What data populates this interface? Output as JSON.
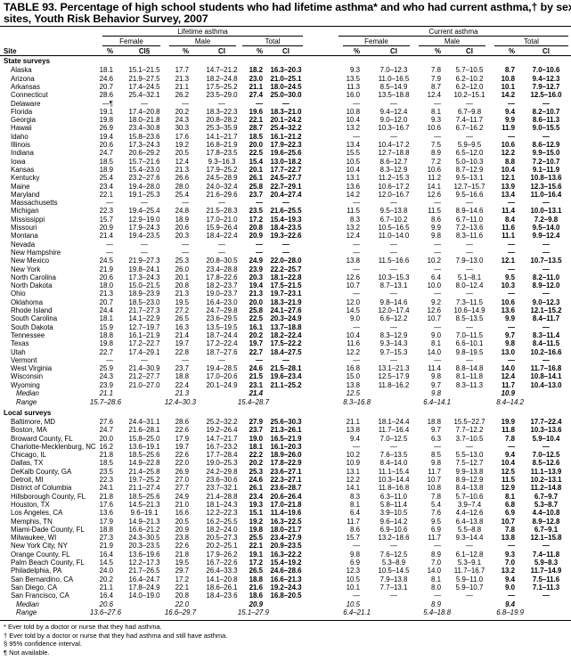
{
  "title": {
    "line1": "TABLE 93. Percentage of high school students who had lifetime asthma* and who had current asthma,† by sex — selected U.S.",
    "line2": "sites, Youth Risk Behavior Survey, 2007"
  },
  "headers": {
    "lifetime": "Lifetime asthma",
    "current": "Current asthma",
    "female": "Female",
    "male": "Male",
    "total": "Total",
    "site": "Site",
    "pct": "%",
    "ci": "CI",
    "ci_first": "CI§"
  },
  "states": {
    "label": "State surveys",
    "rows": [
      [
        "Alaska",
        "18.1",
        "15.1–21.5",
        "17.7",
        "14.7–21.2",
        "18.2",
        "16.3–20.3",
        "9.3",
        "7.0–12.3",
        "7.8",
        "5.7–10.5",
        "8.7",
        "7.0–10.6"
      ],
      [
        "Arizona",
        "24.6",
        "21.9–27.5",
        "21.3",
        "18.2–24.8",
        "23.0",
        "21.0–25.1",
        "13.5",
        "11.0–16.5",
        "7.9",
        "6.2–10.2",
        "10.8",
        "9.4–12.3"
      ],
      [
        "Arkansas",
        "20.7",
        "17.4–24.5",
        "21.1",
        "17.5–25.2",
        "21.1",
        "18.0–24.5",
        "11.3",
        "8.5–14.9",
        "8.7",
        "6.2–12.0",
        "10.1",
        "7.9–12.7"
      ],
      [
        "Connecticut",
        "28.6",
        "25.4–32.1",
        "26.2",
        "23.5–29.0",
        "27.4",
        "25.0–30.0",
        "16.0",
        "13.5–18.8",
        "12.4",
        "10.2–15.1",
        "14.2",
        "12.5–16.0"
      ],
      [
        "Delaware",
        "—¶",
        "—",
        "—",
        "—",
        "—",
        "—",
        "—",
        "—",
        "—",
        "—",
        "—",
        "—"
      ],
      [
        "Florida",
        "19.1",
        "17.4–20.8",
        "20.2",
        "18.3–22.3",
        "19.6",
        "18.3–21.0",
        "10.8",
        "9.4–12.4",
        "8.1",
        "6.7–9.8",
        "9.4",
        "8.2–10.7"
      ],
      [
        "Georgia",
        "19.8",
        "18.0–21.8",
        "24.3",
        "20.8–28.2",
        "22.1",
        "20.1–24.2",
        "10.4",
        "9.0–12.0",
        "9.3",
        "7.4–11.7",
        "9.9",
        "8.6–11.3"
      ],
      [
        "Hawaii",
        "26.9",
        "23.4–30.8",
        "30.3",
        "25.3–35.9",
        "28.7",
        "25.4–32.2",
        "13.2",
        "10.3–16.7",
        "10.6",
        "6.7–16.2",
        "11.9",
        "9.0–15.5"
      ],
      [
        "Idaho",
        "19.4",
        "15.8–23.6",
        "17.6",
        "14.1–21.7",
        "18.5",
        "16.1–21.2",
        "—",
        "—",
        "—",
        "—",
        "—",
        "—"
      ],
      [
        "Illinois",
        "20.6",
        "17.3–24.3",
        "19.2",
        "16.8–21.9",
        "20.0",
        "17.9–22.3",
        "13.4",
        "10.4–17.2",
        "7.5",
        "5.9–9.5",
        "10.6",
        "8.6–12.9"
      ],
      [
        "Indiana",
        "24.7",
        "20.6–29.2",
        "20.5",
        "17.8–23.5",
        "22.5",
        "19.6–25.6",
        "15.5",
        "12.7–18.8",
        "8.9",
        "6.5–12.0",
        "12.2",
        "9.9–15.0"
      ],
      [
        "Iowa",
        "18.5",
        "15.7–21.6",
        "12.4",
        "9.3–16.3",
        "15.4",
        "13.0–18.2",
        "10.5",
        "8.6–12.7",
        "7.2",
        "5.0–10.3",
        "8.8",
        "7.2–10.7"
      ],
      [
        "Kansas",
        "18.9",
        "15.4–23.0",
        "21.3",
        "17.9–25.2",
        "20.1",
        "17.7–22.7",
        "10.4",
        "8.3–12.9",
        "10.6",
        "8.7–12.9",
        "10.4",
        "9.1–11.9"
      ],
      [
        "Kentucky",
        "25.4",
        "23.2–27.6",
        "26.6",
        "24.5–28.9",
        "26.1",
        "24.5–27.7",
        "13.1",
        "11.2–15.3",
        "11.2",
        "9.5–13.1",
        "12.1",
        "10.8–13.6"
      ],
      [
        "Maine",
        "23.4",
        "19.4–28.0",
        "28.0",
        "24.0–32.4",
        "25.8",
        "22.7–29.1",
        "13.6",
        "10.6–17.2",
        "14.1",
        "12.7–15.7",
        "13.9",
        "12.3–15.6"
      ],
      [
        "Maryland",
        "22.1",
        "19.1–25.3",
        "25.4",
        "21.6–29.6",
        "23.7",
        "20.4–27.4",
        "14.2",
        "12.0–16.7",
        "12.6",
        "9.5–16.6",
        "13.4",
        "11.0–16.4"
      ],
      [
        "Massachusetts",
        "—",
        "—",
        "—",
        "—",
        "—",
        "—",
        "—",
        "—",
        "—",
        "—",
        "—",
        "—"
      ],
      [
        "Michigan",
        "22.3",
        "19.4–25.4",
        "24.8",
        "21.5–28.3",
        "23.5",
        "21.6–25.5",
        "11.5",
        "9.5–13.8",
        "11.5",
        "8.9–14.6",
        "11.4",
        "10.0–13.1"
      ],
      [
        "Mississippi",
        "15.7",
        "12.9–19.0",
        "18.9",
        "17.0–21.0",
        "17.2",
        "15.4–19.3",
        "8.3",
        "6.7–10.2",
        "8.6",
        "6.7–11.0",
        "8.4",
        "7.2–9.8"
      ],
      [
        "Missouri",
        "20.9",
        "17.9–24.3",
        "20.6",
        "15.9–26.4",
        "20.8",
        "18.4–23.5",
        "13.2",
        "10.5–16.5",
        "9.9",
        "7.2–13.6",
        "11.6",
        "9.5–14.0"
      ],
      [
        "Montana",
        "21.4",
        "19.4–23.5",
        "20.3",
        "18.4–22.4",
        "20.9",
        "19.3–22.6",
        "12.4",
        "11.0–14.0",
        "9.8",
        "8.3–11.6",
        "11.1",
        "9.9–12.4"
      ],
      [
        "Nevada",
        "—",
        "—",
        "—",
        "—",
        "—",
        "—",
        "—",
        "—",
        "—",
        "—",
        "—",
        "—"
      ],
      [
        "New Hampshire",
        "—",
        "—",
        "—",
        "—",
        "—",
        "—",
        "—",
        "—",
        "—",
        "—",
        "—",
        "—"
      ],
      [
        "New Mexico",
        "24.5",
        "21.9–27.3",
        "25.3",
        "20.8–30.5",
        "24.9",
        "22.0–28.0",
        "13.8",
        "11.5–16.6",
        "10.2",
        "7.9–13.0",
        "12.1",
        "10.7–13.5"
      ],
      [
        "New York",
        "21.9",
        "19.8–24.1",
        "26.0",
        "23.4–28.8",
        "23.9",
        "22.2–25.7",
        "—",
        "—",
        "—",
        "—",
        "—",
        "—"
      ],
      [
        "North Carolina",
        "20.6",
        "17.3–24.3",
        "20.1",
        "17.8–22.6",
        "20.3",
        "18.1–22.8",
        "12.6",
        "10.3–15.3",
        "6.4",
        "5.1–8.1",
        "9.5",
        "8.2–11.0"
      ],
      [
        "North Dakota",
        "18.0",
        "15.0–21.5",
        "20.8",
        "18.2–23.7",
        "19.4",
        "17.5–21.5",
        "10.7",
        "8.7–13.1",
        "10.0",
        "8.0–12.4",
        "10.3",
        "8.9–12.0"
      ],
      [
        "Ohio",
        "21.3",
        "18.9–23.9",
        "21.3",
        "19.0–23.7",
        "21.3",
        "19.7–23.1",
        "—",
        "—",
        "—",
        "—",
        "—",
        "—"
      ],
      [
        "Oklahoma",
        "20.7",
        "18.5–23.0",
        "19.5",
        "16.4–23.0",
        "20.0",
        "18.3–21.9",
        "12.0",
        "9.8–14.6",
        "9.2",
        "7.3–11.5",
        "10.6",
        "9.0–12.3"
      ],
      [
        "Rhode Island",
        "24.4",
        "21.7–27.3",
        "27.2",
        "24.7–29.8",
        "25.8",
        "24.1–27.6",
        "14.5",
        "12.0–17.4",
        "12.6",
        "10.6–14.9",
        "13.6",
        "12.1–15.2"
      ],
      [
        "South Carolina",
        "18.1",
        "14.1–22.9",
        "26.5",
        "23.6–29.5",
        "22.5",
        "20.3–24.9",
        "9.0",
        "6.6–12.2",
        "10.7",
        "8.5–13.5",
        "9.9",
        "8.4–11.7"
      ],
      [
        "South Dakota",
        "15.9",
        "12.7–19.7",
        "16.3",
        "13.5–19.5",
        "16.1",
        "13.7–18.8",
        "—",
        "—",
        "—",
        "—",
        "—",
        "—"
      ],
      [
        "Tennessee",
        "18.8",
        "16.1–21.9",
        "21.4",
        "18.7–24.4",
        "20.2",
        "18.2–22.4",
        "10.4",
        "8.3–12.9",
        "9.0",
        "7.0–11.5",
        "9.7",
        "8.3–11.4"
      ],
      [
        "Texas",
        "19.8",
        "17.2–22.7",
        "19.7",
        "17.2–22.4",
        "19.7",
        "17.5–22.2",
        "11.6",
        "9.3–14.3",
        "8.1",
        "6.6–10.1",
        "9.8",
        "8.4–11.5"
      ],
      [
        "Utah",
        "22.7",
        "17.4–29.1",
        "22.8",
        "18.7–27.6",
        "22.7",
        "18.4–27.5",
        "12.2",
        "9.7–15.3",
        "14.0",
        "9.8–19.5",
        "13.0",
        "10.2–16.6"
      ],
      [
        "Vermont",
        "—",
        "—",
        "—",
        "—",
        "—",
        "—",
        "—",
        "—",
        "—",
        "—",
        "—",
        "—"
      ],
      [
        "West Virginia",
        "25.9",
        "21.4–30.9",
        "23.7",
        "19.4–28.5",
        "24.6",
        "21.5–28.1",
        "16.8",
        "13.1–21.3",
        "11.4",
        "8.8–14.8",
        "14.0",
        "11.7–16.8"
      ],
      [
        "Wisconsin",
        "24.3",
        "21.2–27.7",
        "18.8",
        "17.0–20.6",
        "21.5",
        "19.6–23.4",
        "15.0",
        "12.5–17.9",
        "9.8",
        "8.1–11.8",
        "12.4",
        "10.8–14.1"
      ],
      [
        "Wyoming",
        "23.9",
        "21.0–27.0",
        "22.4",
        "20.1–24.9",
        "23.1",
        "21.1–25.2",
        "13.8",
        "11.8–16.2",
        "9.7",
        "8.3–11.3",
        "11.7",
        "10.4–13.0"
      ]
    ],
    "median": [
      "Median",
      "21.1",
      "21.3",
      "21.4",
      "12.5",
      "9.8",
      "10.9"
    ],
    "range": [
      "Range",
      "15.7–28.6",
      "12.4–30.3",
      "15.4–28.7",
      "8.3–16.8",
      "6.4–14.1",
      "8.4–14.2"
    ]
  },
  "local": {
    "label": "Local surveys",
    "rows": [
      [
        "Baltimore, MD",
        "27.6",
        "24.4–31.1",
        "28.6",
        "25.2–32.2",
        "27.9",
        "25.6–30.3",
        "21.1",
        "18.1–24.4",
        "18.8",
        "15.5–22.7",
        "19.9",
        "17.7–22.4"
      ],
      [
        "Boston, MA",
        "24.7",
        "21.6–28.1",
        "22.6",
        "19.2–26.4",
        "23.7",
        "21.3–26.1",
        "13.8",
        "11.7–16.4",
        "9.7",
        "7.7–12.2",
        "11.8",
        "10.3–13.6"
      ],
      [
        "Broward County, FL",
        "20.0",
        "15.8–25.0",
        "17.9",
        "14.7–21.7",
        "19.0",
        "16.5–21.9",
        "9.4",
        "7.0–12.5",
        "6.3",
        "3.7–10.5",
        "7.8",
        "5.9–10.4"
      ],
      [
        "Charlotte-Mecklenburg, NC",
        "16.2",
        "13.6–19.1",
        "19.7",
        "16.7–23.2",
        "18.1",
        "16.1–20.3",
        "—",
        "—",
        "—",
        "—",
        "—",
        "—"
      ],
      [
        "Chicago, IL",
        "21.8",
        "18.5–25.6",
        "22.6",
        "17.7–28.4",
        "22.2",
        "18.9–26.0",
        "10.2",
        "7.6–13.5",
        "8.5",
        "5.5–13.0",
        "9.4",
        "7.0–12.5"
      ],
      [
        "Dallas, TX",
        "18.5",
        "14.9–22.8",
        "22.0",
        "19.0–25.3",
        "20.2",
        "17.8–22.9",
        "10.9",
        "8.4–14.0",
        "9.8",
        "7.5–12.7",
        "10.4",
        "8.5–12.6"
      ],
      [
        "DeKalb County, GA",
        "23.5",
        "21.4–25.8",
        "26.9",
        "24.2–29.8",
        "25.3",
        "23.6–27.1",
        "13.1",
        "11.1–15.4",
        "11.7",
        "9.9–13.8",
        "12.5",
        "11.1–13.9"
      ],
      [
        "Detroit, MI",
        "22.3",
        "19.7–25.2",
        "27.0",
        "23.6–30.6",
        "24.6",
        "22.3–27.1",
        "12.2",
        "10.3–14.4",
        "10.7",
        "8.9–12.9",
        "11.5",
        "10.2–13.1"
      ],
      [
        "District of Columbia",
        "24.1",
        "21.1–27.4",
        "27.7",
        "23.7–32.1",
        "26.1",
        "23.6–28.7",
        "14.1",
        "11.8–16.8",
        "10.8",
        "8.4–13.8",
        "12.9",
        "11.2–14.8"
      ],
      [
        "Hillsborough County, FL",
        "21.8",
        "18.5–25.6",
        "24.9",
        "21.4–28.8",
        "23.4",
        "20.6–26.4",
        "8.3",
        "6.3–11.0",
        "7.8",
        "5.7–10.6",
        "8.1",
        "6.7–9.7"
      ],
      [
        "Houston, TX",
        "17.6",
        "14.5–21.3",
        "21.0",
        "18.1–24.3",
        "19.3",
        "17.0–21.8",
        "8.1",
        "5.8–11.4",
        "5.4",
        "3.9–7.4",
        "6.8",
        "5.3–8.7"
      ],
      [
        "Los Angeles, CA",
        "13.6",
        "9.6–19.1",
        "16.6",
        "12.2–22.3",
        "15.1",
        "11.4–19.6",
        "6.4",
        "3.9–10.5",
        "7.6",
        "4.4–12.6",
        "6.9",
        "4.4–10.8"
      ],
      [
        "Memphis, TN",
        "17.9",
        "14.9–21.3",
        "20.5",
        "16.2–25.5",
        "19.2",
        "16.3–22.5",
        "11.7",
        "9.6–14.2",
        "9.5",
        "6.4–13.8",
        "10.7",
        "8.9–12.8"
      ],
      [
        "Miami-Dade County, FL",
        "18.8",
        "16.6–21.2",
        "20.9",
        "18.2–24.0",
        "19.8",
        "18.0–21.7",
        "8.6",
        "6.9–10.6",
        "6.9",
        "5.5–8.8",
        "7.8",
        "6.7–9.1"
      ],
      [
        "Milwaukee, WI",
        "27.3",
        "24.3–30.5",
        "23.8",
        "20.5–27.3",
        "25.5",
        "23.4–27.9",
        "15.7",
        "13.2–18.6",
        "11.7",
        "9.3–14.4",
        "13.8",
        "12.1–15.8"
      ],
      [
        "New York City, NY",
        "21.9",
        "20.3–23.5",
        "22.6",
        "20.2–25.1",
        "22.1",
        "20.9–23.5",
        "—",
        "—",
        "—",
        "—",
        "—",
        "—"
      ],
      [
        "Orange County, FL",
        "16.4",
        "13.6–19.6",
        "21.8",
        "17.9–26.2",
        "19.1",
        "16.3–22.2",
        "9.8",
        "7.6–12.5",
        "8.9",
        "6.1–12.8",
        "9.3",
        "7.4–11.8"
      ],
      [
        "Palm Beach County, FL",
        "14.5",
        "12.2–17.3",
        "19.5",
        "16.7–22.6",
        "17.2",
        "15.4–19.2",
        "6.9",
        "5.3–8.9",
        "7.0",
        "5.3–9.1",
        "7.0",
        "5.9–8.3"
      ],
      [
        "Philadelphia, PA",
        "24.0",
        "21.7–26.5",
        "29.7",
        "26.4–33.3",
        "26.5",
        "24.6–28.6",
        "12.3",
        "10.5–14.5",
        "14.0",
        "11.7–16.7",
        "13.2",
        "11.7–14.9"
      ],
      [
        "San Bernardino, CA",
        "20.2",
        "16.4–24.7",
        "17.2",
        "14.1–20.8",
        "18.8",
        "16.6–21.3",
        "10.5",
        "7.9–13.8",
        "8.1",
        "5.9–11.0",
        "9.4",
        "7.5–11.6"
      ],
      [
        "San Diego, CA",
        "21.1",
        "17.8–24.9",
        "22.1",
        "18.6–26.1",
        "21.6",
        "19.2–24.3",
        "10.1",
        "7.7–13.1",
        "8.0",
        "5.9–10.7",
        "9.0",
        "7.1–11.3"
      ],
      [
        "San Francisco, CA",
        "16.4",
        "14.0–19.0",
        "20.8",
        "18.4–23.6",
        "18.6",
        "16.8–20.5",
        "—",
        "—",
        "—",
        "—",
        "—",
        "—"
      ]
    ],
    "median": [
      "Median",
      "20.6",
      "22.0",
      "20.9",
      "10.5",
      "8.9",
      "9.4"
    ],
    "range": [
      "Range",
      "13.6–27.6",
      "16.6–29.7",
      "15.1–27.9",
      "6.4–21.1",
      "5.4–18.8",
      "6.8–19.9"
    ]
  },
  "footnotes": [
    "* Ever told by a doctor or nurse that they had asthma.",
    "† Ever told by a doctor or nurse that they had asthma and still have asthma.",
    "§ 95% confidence interval.",
    "¶ Not available."
  ]
}
